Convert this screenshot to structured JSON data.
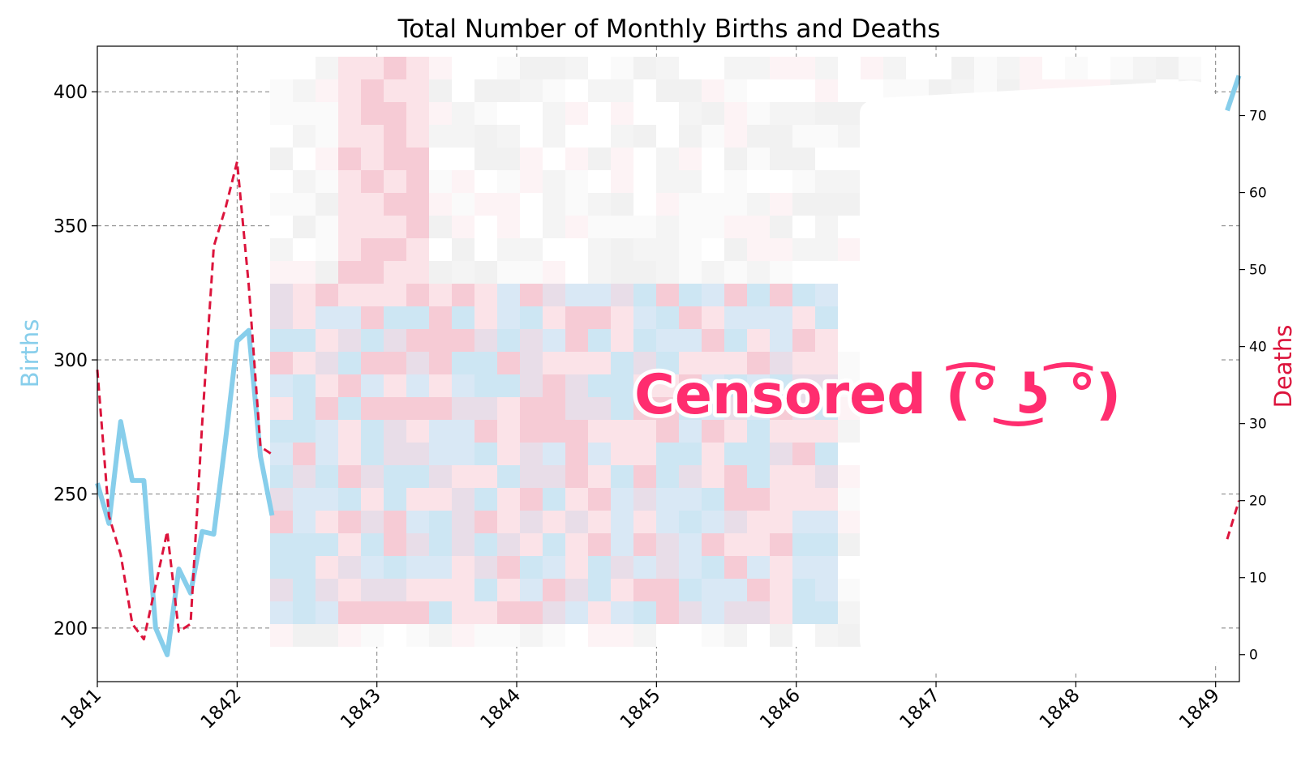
{
  "chart_data": {
    "type": "line",
    "title": "Total Number of Monthly Births and Deaths",
    "xlabel": "",
    "ylabel": "Births",
    "ylabel_right": "Deaths",
    "x_ticks": [
      "1841",
      "1842",
      "1843",
      "1844",
      "1845",
      "1846",
      "1847",
      "1848",
      "1849"
    ],
    "xlim": [
      1841.0,
      1849.17
    ],
    "ylim": [
      180,
      417
    ],
    "y_ticks": [
      200,
      250,
      300,
      350,
      400
    ],
    "ylim_right": [
      -3.5,
      79
    ],
    "y_ticks_right": [
      0,
      10,
      20,
      30,
      40,
      50,
      60,
      70
    ],
    "grid": true,
    "series": [
      {
        "name": "Births",
        "axis": "left",
        "color": "#87ceeb",
        "style": "solid",
        "x": [
          1841.0,
          1841.083,
          1841.167,
          1841.25,
          1841.333,
          1841.417,
          1841.5,
          1841.583,
          1841.667,
          1841.75,
          1841.833,
          1841.917,
          1842.0,
          1842.083,
          1842.167,
          1842.25,
          1849.083,
          1849.167
        ],
        "values": [
          254,
          239,
          277,
          255,
          255,
          200,
          190,
          222,
          213,
          236,
          235,
          270,
          307,
          311,
          264,
          242,
          393,
          406
        ]
      },
      {
        "name": "Deaths",
        "axis": "right",
        "color": "#dc143c",
        "style": "dashed",
        "x": [
          1841.0,
          1841.083,
          1841.167,
          1841.25,
          1841.333,
          1841.417,
          1841.5,
          1841.583,
          1841.667,
          1841.75,
          1841.833,
          1841.917,
          1842.0,
          1842.083,
          1842.167,
          1842.25,
          1849.083,
          1849.167
        ],
        "values": [
          37,
          18,
          13,
          4,
          2,
          9,
          16,
          3,
          4,
          30,
          53,
          58,
          64,
          48,
          27,
          26,
          15,
          20
        ]
      }
    ]
  },
  "overlay": {
    "text": "Censored (͡° ͜ʖ ͡°)",
    "color": "#ff2d6f"
  }
}
